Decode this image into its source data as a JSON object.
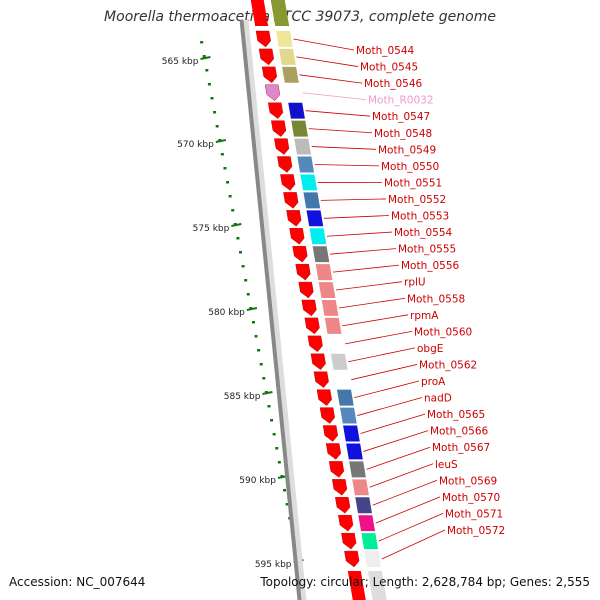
{
  "title": "Moorella thermoacetica ATCC 39073, complete genome",
  "accession": "Accession: NC_007644",
  "topology": "Topology: circular; Length: 2,628,784 bp; Genes: 2,555",
  "colors": {
    "gene_arrow": "#ff0000",
    "rna_arrow": "#dd88cc",
    "label": "#cc0000",
    "rna_label": "#ee99cc",
    "tick": "#117711",
    "backbone": "#888888"
  },
  "scale": {
    "labels": [
      "565 kbp",
      "570 kbp",
      "575 kbp",
      "580 kbp",
      "585 kbp",
      "590 kbp",
      "595 kbp"
    ]
  },
  "features": [
    {
      "id": "Moth_0544",
      "label": "Moth_0544",
      "cog": "#eee699",
      "type": "gene"
    },
    {
      "id": "Moth_0545",
      "label": "Moth_0545",
      "cog": "#e0d88a",
      "type": "gene"
    },
    {
      "id": "Moth_0546",
      "label": "Moth_0546",
      "cog": "#aaa060",
      "type": "gene"
    },
    {
      "id": "Moth_R0032",
      "label": "Moth_R0032",
      "cog": null,
      "type": "rna"
    },
    {
      "id": "Moth_0547",
      "label": "Moth_0547",
      "cog": "#1111cc",
      "type": "gene"
    },
    {
      "id": "Moth_0548",
      "label": "Moth_0548",
      "cog": "#778833",
      "type": "gene"
    },
    {
      "id": "Moth_0549",
      "label": "Moth_0549",
      "cog": "#bbbbbb",
      "type": "gene"
    },
    {
      "id": "Moth_0550",
      "label": "Moth_0550",
      "cog": "#5588bb",
      "type": "gene"
    },
    {
      "id": "Moth_0551",
      "label": "Moth_0551",
      "cog": "#00eeee",
      "type": "gene"
    },
    {
      "id": "Moth_0552",
      "label": "Moth_0552",
      "cog": "#4477aa",
      "type": "gene"
    },
    {
      "id": "Moth_0553",
      "label": "Moth_0553",
      "cog": "#1111dd",
      "type": "gene"
    },
    {
      "id": "Moth_0554",
      "label": "Moth_0554",
      "cog": "#00eeee",
      "type": "gene"
    },
    {
      "id": "Moth_0555",
      "label": "Moth_0555",
      "cog": "#777777",
      "type": "gene"
    },
    {
      "id": "Moth_0556",
      "label": "Moth_0556",
      "cog": "#ee8888",
      "type": "gene"
    },
    {
      "id": "rplU",
      "label": "rplU",
      "cog": "#ee8888",
      "type": "gene"
    },
    {
      "id": "Moth_0558",
      "label": "Moth_0558",
      "cog": "#ee8888",
      "type": "gene"
    },
    {
      "id": "rpmA",
      "label": "rpmA",
      "cog": "#ee8888",
      "type": "gene"
    },
    {
      "id": "Moth_0560",
      "label": "Moth_0560",
      "cog": null,
      "type": "gene"
    },
    {
      "id": "obgE",
      "label": "obgE",
      "cog": "#cccccc",
      "type": "gene"
    },
    {
      "id": "Moth_0562",
      "label": "Moth_0562",
      "cog": null,
      "type": "gene"
    },
    {
      "id": "proA",
      "label": "proA",
      "cog": "#4477aa",
      "type": "gene"
    },
    {
      "id": "nadD",
      "label": "nadD",
      "cog": "#5588bb",
      "type": "gene"
    },
    {
      "id": "Moth_0565",
      "label": "Moth_0565",
      "cog": "#1111dd",
      "type": "gene"
    },
    {
      "id": "Moth_0566",
      "label": "Moth_0566",
      "cog": "#1111dd",
      "type": "gene"
    },
    {
      "id": "Moth_0567",
      "label": "Moth_0567",
      "cog": "#777777",
      "type": "gene"
    },
    {
      "id": "leuS",
      "label": "leuS",
      "cog": "#ee8888",
      "type": "gene"
    },
    {
      "id": "Moth_0569",
      "label": "Moth_0569",
      "cog": "#444488",
      "type": "gene"
    },
    {
      "id": "Moth_0570",
      "label": "Moth_0570",
      "cog": "#ee1188",
      "type": "gene"
    },
    {
      "id": "Moth_0571",
      "label": "Moth_0571",
      "cog": "#00ee99",
      "type": "gene"
    },
    {
      "id": "Moth_0572",
      "label": "Moth_0572",
      "cog": "#eeeeee",
      "type": "gene"
    }
  ]
}
